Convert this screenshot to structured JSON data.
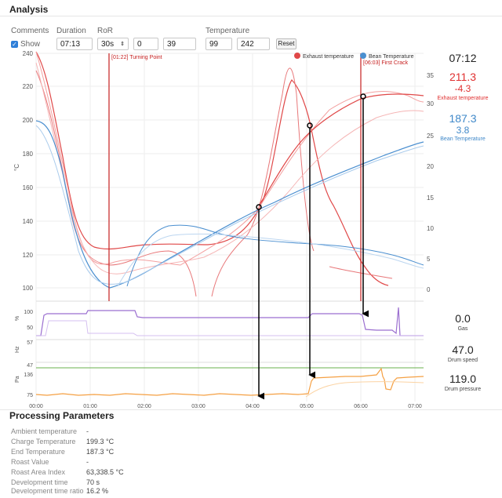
{
  "header": {
    "title": "Analysis"
  },
  "controls": {
    "comments_label": "Comments",
    "show_label": "Show",
    "duration_label": "Duration",
    "duration_value": "07:13",
    "ror_label": "RoR",
    "ror_select": "30s",
    "ror_min": "0",
    "ror_max": "39",
    "temperature_label": "Temperature",
    "temp_min": "99",
    "temp_max": "242",
    "reset_label": "Reset"
  },
  "events": {
    "turning_point": "[01:22] Turning Point",
    "first_crack": "[06:03] First Crack"
  },
  "legend": {
    "exhaust": "Exhaust temperature",
    "bean": "Bean Temperature"
  },
  "colors": {
    "exhaust": "#e04848",
    "bean": "#4a8fd0",
    "gas": "#9b6fd0",
    "drum_speed": "#6ab04c",
    "drum_pressure": "#f5a043",
    "event_line": "#c62020"
  },
  "readouts": {
    "time": "07:12",
    "exhaust_value": "211.3",
    "exhaust_delta": "-4.3",
    "exhaust_label": "Exhaust temperature",
    "bean_value": "187.3",
    "bean_delta": "3.8",
    "bean_label": "Bean Temperature",
    "gas_value": "0.0",
    "gas_label": "Gas",
    "drum_speed_value": "47.0",
    "drum_speed_label": "Drum speed",
    "drum_pressure_value": "119.0",
    "drum_pressure_label": "Drum pressure"
  },
  "axes": {
    "temp_label": "°C",
    "temp_ticks": [
      "240",
      "220",
      "200",
      "180",
      "160",
      "140",
      "120",
      "100"
    ],
    "ror_ticks": [
      "35",
      "30",
      "25",
      "20",
      "15",
      "10",
      "5",
      "0"
    ],
    "gas_label": "%",
    "gas_ticks": [
      "100",
      "50"
    ],
    "hz_label": "Hz",
    "hz_ticks": [
      "57",
      "47"
    ],
    "pa_label": "Pa",
    "pa_ticks": [
      "136",
      "75"
    ],
    "time_ticks": [
      "00:00",
      "01:00",
      "02:00",
      "03:00",
      "04:00",
      "05:00",
      "06:00",
      "07:00"
    ]
  },
  "processing": {
    "title": "Processing Parameters",
    "rows": [
      {
        "label": "Ambient temperature",
        "value": "-"
      },
      {
        "label": "Charge Temperature",
        "value": "199.3 °C"
      },
      {
        "label": "End Temperature",
        "value": "187.3 °C"
      },
      {
        "label": "Roast Value",
        "value": "-"
      },
      {
        "label": "Roast Area Index",
        "value": "63,338.5 °C"
      },
      {
        "label": "Development time",
        "value": "70 s"
      },
      {
        "label": "Development time ratio",
        "value": "16.2 %"
      }
    ]
  }
}
